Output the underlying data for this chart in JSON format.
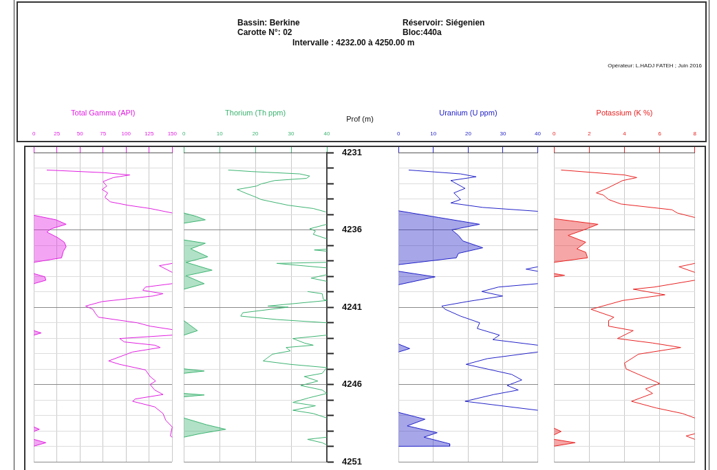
{
  "chart_data": [
    {
      "type": "line",
      "orientation": "horizontal",
      "xlabel": "Total Gamma (API)",
      "xlim": [
        0,
        150
      ],
      "xticks": [
        0,
        25,
        50,
        75,
        100,
        125,
        150
      ],
      "ylim": [
        4251,
        4231
      ],
      "yticks": [
        4231,
        {
          "value": 4232,
          "label": null
        },
        {
          "value": 4233,
          "label": null
        },
        {
          "value": 4234,
          "label": null
        },
        {
          "value": 4235,
          "label": null
        },
        4236,
        {
          "value": 4237,
          "label": null
        },
        {
          "value": 4238,
          "label": null
        },
        {
          "value": 4239,
          "label": null
        },
        {
          "value": 4240,
          "label": null
        },
        4241,
        {
          "value": 4242,
          "label": null
        },
        {
          "value": 4243,
          "label": null
        },
        {
          "value": 4244,
          "label": null
        },
        {
          "value": 4245,
          "label": null
        },
        4246,
        {
          "value": 4247,
          "label": null
        },
        {
          "value": 4248,
          "label": null
        },
        {
          "value": 4249,
          "label": null
        },
        {
          "value": 4250,
          "label": null
        },
        4251
      ],
      "grid": true,
      "marker": "none",
      "tick_labels": "x",
      "annotations": [
        "Bassin: Berkine",
        "Carotte N°: 02",
        "Réservoir: Siégenien",
        "Bloc:440a",
        "Intervalle : 4232.00 à 4250.00 m",
        "Opérateur: L.HADJ FATEH ; Juin 2016"
      ],
      "series": [
        {
          "type": "line",
          "color": "#e01ee0",
          "x": [
            4232.13,
            4232.3,
            4232.45,
            4232.62,
            4232.88,
            4233.17,
            4233.39,
            4233.61,
            4233.9,
            4234.19,
            4234.41,
            4234.62,
            4234.91,
            4235.0,
            4238.17,
            4238.32,
            4238.75,
            4238.8,
            4239.48,
            4239.7,
            4239.91,
            4240.13,
            4240.28,
            4240.64,
            4240.93,
            4241.14,
            4241.43,
            4241.65,
            4242.01,
            4242.23,
            4242.45,
            4242.5,
            4242.81,
            4243.03,
            4243.25,
            4243.46,
            4243.61,
            4243.9,
            4244.48,
            4244.7,
            4245.06,
            4245.49,
            4245.78,
            4246.0,
            4246.36,
            4246.65,
            4246.94,
            4247.09,
            4247.45,
            4247.88,
            4248.32,
            4248.75,
            4249.33,
            4249.41
          ],
          "values": [
            14,
            76,
            104,
            86,
            75,
            79,
            74,
            80,
            77,
            83,
            102,
            126,
            150,
            null,
            150,
            136,
            150,
            null,
            150,
            121,
            118,
            140,
            129,
            74,
            56,
            64,
            67,
            70,
            112,
            126,
            150,
            null,
            150,
            93,
            98,
            131,
            137,
            107,
            81,
            93,
            121,
            126,
            132,
            126,
            131,
            140,
            110,
            107,
            131,
            140,
            143,
            150,
            148,
            150
          ]
        },
        {
          "type": "area",
          "color": "#e01ee0",
          "x": [
            4235.06,
            4235.35,
            4235.64,
            4235.93,
            4236.14,
            4236.51,
            4236.8,
            4237.09,
            4237.38,
            4237.81,
            4238.1,
            4238.3,
            4238.83,
            4239.04,
            4239.26,
            4239.48,
            4240.0,
            4242.52,
            4242.67,
            4242.81,
            4243.0,
            4248.75,
            4248.9,
            4249.04,
            4249.3,
            4249.55,
            4249.77,
            4249.99
          ],
          "values": [
            0,
            24,
            35,
            19,
            14,
            26,
            33,
            35,
            32,
            30,
            0,
            null,
            0,
            12,
            13,
            0,
            null,
            0,
            8,
            0,
            null,
            0,
            6,
            0,
            null,
            0,
            13,
            0
          ]
        }
      ]
    },
    {
      "type": "line",
      "orientation": "horizontal",
      "xlabel": "Thorium (Th ppm)",
      "ylabel": "Prof (m)",
      "xlim": [
        0,
        40
      ],
      "xticks": [
        0,
        10,
        20,
        30,
        40
      ],
      "ylim": [
        4251,
        4231
      ],
      "yticks": [
        4231,
        {
          "value": 4232,
          "label": null
        },
        {
          "value": 4233,
          "label": null
        },
        {
          "value": 4234,
          "label": null
        },
        {
          "value": 4235,
          "label": null
        },
        4236,
        {
          "value": 4237,
          "label": null
        },
        {
          "value": 4238,
          "label": null
        },
        {
          "value": 4239,
          "label": null
        },
        {
          "value": 4240,
          "label": null
        },
        4241,
        {
          "value": 4242,
          "label": null
        },
        {
          "value": 4243,
          "label": null
        },
        {
          "value": 4244,
          "label": null
        },
        {
          "value": 4245,
          "label": null
        },
        4246,
        {
          "value": 4247,
          "label": null
        },
        {
          "value": 4248,
          "label": null
        },
        {
          "value": 4249,
          "label": null
        },
        {
          "value": 4250,
          "label": null
        },
        4251
      ],
      "grid": true,
      "marker": "none",
      "series": [
        {
          "type": "line",
          "color": "#3cb371",
          "x": [
            4232.13,
            4232.23,
            4232.38,
            4232.52,
            4232.67,
            4232.81,
            4233.03,
            4233.17,
            4233.39,
            4233.61,
            4233.9,
            4234.04,
            4234.41,
            4234.62,
            4234.84,
            4234.9,
            4235.64,
            4235.93,
            4236.07,
            4236.29,
            4236.58,
            4236.6,
            4237.25,
            4237.3,
            4237.38,
            4237.4,
            4238.1,
            4238.17,
            4238.25,
            4238.46,
            4238.5,
            4238.9,
            4239.12,
            4239.33,
            4239.4,
            4239.99,
            4240.13,
            4240.49,
            4240.57,
            4240.93,
            4241.0,
            4241.36,
            4241.58,
            4241.8,
            4242.01,
            4242.1,
            4242.81,
            4243.03,
            4243.32,
            4243.46,
            4243.61,
            4243.83,
            4244.04,
            4244.48,
            4244.7,
            4244.91,
            4245.28,
            4245.49,
            4245.78,
            4246.07,
            4246.36,
            4246.58,
            4246.87,
            4247.16,
            4247.38,
            4247.67,
            4247.88,
            4248.17,
            4248.3,
            4249.41,
            4249.55,
            4249.77,
            4249.91
          ],
          "values": [
            12.4,
            19,
            32.4,
            35.2,
            34.3,
            25.4,
            21.6,
            20.3,
            14.9,
            17.1,
            20.3,
            21.6,
            29.2,
            36.2,
            39.7,
            null,
            40,
            35.2,
            36.8,
            36.2,
            40,
            null,
            40,
            36.5,
            40,
            null,
            40,
            26,
            29.8,
            40,
            null,
            40,
            35.6,
            40,
            null,
            34.6,
            38.7,
            39,
            40,
            23.5,
            29.2,
            16.5,
            15.9,
            26,
            40,
            null,
            40,
            30.5,
            33.7,
            36.2,
            28.6,
            29.8,
            24.8,
            22.2,
            29.8,
            40,
            38.7,
            33.7,
            37.5,
            32.7,
            38.7,
            40,
            34.9,
            30.5,
            36.8,
            30.5,
            36.2,
            40,
            null,
            40,
            34.6,
            38.7,
            40
          ]
        },
        {
          "type": "area",
          "color": "#3cb371",
          "x": [
            4234.91,
            4235.13,
            4235.35,
            4235.57,
            4235.6,
            4236.65,
            4236.87,
            4237.23,
            4237.74,
            4238.1,
            4238.61,
            4238.97,
            4239.48,
            4239.84,
            4240.0,
            4241.87,
            4242.52,
            4242.81,
            4243.0,
            4244.99,
            4245.13,
            4245.28,
            4245.5,
            4246.58,
            4246.68,
            4246.8,
            4247.0,
            4248.17,
            4248.61,
            4248.9,
            4249.19,
            4249.41
          ],
          "values": [
            0,
            3.5,
            6,
            0,
            null,
            0,
            6,
            1.9,
            6.7,
            0.6,
            7.9,
            0.6,
            5.7,
            0,
            null,
            0,
            3.8,
            0,
            null,
            0,
            5.7,
            0,
            null,
            0,
            5.7,
            0,
            null,
            0,
            6.4,
            11.7,
            4.4,
            0
          ]
        }
      ]
    },
    {
      "type": "line",
      "orientation": "horizontal",
      "xlabel": "Uranium (U ppm)",
      "xlim": [
        0,
        40
      ],
      "xticks": [
        0,
        10,
        20,
        30,
        40
      ],
      "ylim": [
        4251,
        4231
      ],
      "yticks": [
        4231,
        {
          "value": 4232,
          "label": null
        },
        {
          "value": 4233,
          "label": null
        },
        {
          "value": 4234,
          "label": null
        },
        {
          "value": 4235,
          "label": null
        },
        4236,
        {
          "value": 4237,
          "label": null
        },
        {
          "value": 4238,
          "label": null
        },
        {
          "value": 4239,
          "label": null
        },
        {
          "value": 4240,
          "label": null
        },
        4241,
        {
          "value": 4242,
          "label": null
        },
        {
          "value": 4243,
          "label": null
        },
        {
          "value": 4244,
          "label": null
        },
        {
          "value": 4245,
          "label": null
        },
        4246,
        {
          "value": 4247,
          "label": null
        },
        {
          "value": 4248,
          "label": null
        },
        {
          "value": 4249,
          "label": null
        },
        {
          "value": 4250,
          "label": null
        },
        4251
      ],
      "grid": true,
      "marker": "none",
      "tick_labels": "x",
      "series": [
        {
          "type": "line",
          "color": "#2020c8",
          "x": [
            4232.13,
            4232.38,
            4232.57,
            4232.81,
            4233.32,
            4233.61,
            4234.04,
            4234.26,
            4234.55,
            4234.8,
            4234.9,
            4238.39,
            4238.54,
            4238.68,
            4238.8,
            4239.48,
            4239.7,
            4239.99,
            4240.28,
            4240.64,
            4240.93,
            4241.14,
            4241.58,
            4242.01,
            4242.38,
            4242.81,
            4243.1,
            4243.46,
            4243.6,
            4243.9,
            4244.33,
            4244.7,
            4245.35,
            4245.71,
            4246.07,
            4246.36,
            4246.65,
            4247.09,
            4247.67
          ],
          "values": [
            2.9,
            17.8,
            22.3,
            15,
            19.1,
            15.9,
            17.8,
            15,
            24.2,
            40,
            null,
            40,
            36.6,
            40,
            null,
            40,
            28.7,
            23.9,
            29.9,
            19.7,
            12.4,
            13.4,
            17.8,
            23.3,
            22.6,
            29,
            27.1,
            40,
            null,
            40,
            25.5,
            19.4,
            32.5,
            35.4,
            31.2,
            34.4,
            27.4,
            19.1,
            40
          ]
        },
        {
          "type": "area",
          "color": "#2020c8",
          "x": [
            4234.77,
            4235.2,
            4235.64,
            4236.0,
            4236.36,
            4236.72,
            4237.16,
            4237.52,
            4237.81,
            4238.25,
            4238.4,
            4238.68,
            4239.04,
            4239.55,
            4240.0,
            4243.39,
            4243.68,
            4243.9,
            4244.0,
            4247.81,
            4248.25,
            4248.68,
            4249.12,
            4249.41,
            4249.84,
            4249.99,
            4250.0
          ],
          "values": [
            0,
            11.5,
            23.3,
            15.3,
            17.2,
            18.5,
            24.2,
            17.2,
            16.6,
            0,
            null,
            0,
            10.5,
            0,
            null,
            0,
            3.2,
            0,
            null,
            0,
            7.6,
            2.5,
            11.1,
            7.3,
            14.7,
            14.7,
            0
          ]
        }
      ]
    },
    {
      "type": "line",
      "orientation": "horizontal",
      "xlabel": "Potassium (K %)",
      "xlim": [
        0,
        8
      ],
      "xticks": [
        0,
        2,
        4,
        6,
        8
      ],
      "ylim": [
        4251,
        4231
      ],
      "yticks": [
        4231,
        {
          "value": 4232,
          "label": null
        },
        {
          "value": 4233,
          "label": null
        },
        {
          "value": 4234,
          "label": null
        },
        {
          "value": 4235,
          "label": null
        },
        4236,
        {
          "value": 4237,
          "label": null
        },
        {
          "value": 4238,
          "label": null
        },
        {
          "value": 4239,
          "label": null
        },
        {
          "value": 4240,
          "label": null
        },
        4241,
        {
          "value": 4242,
          "label": null
        },
        {
          "value": 4243,
          "label": null
        },
        {
          "value": 4244,
          "label": null
        },
        {
          "value": 4245,
          "label": null
        },
        4246,
        {
          "value": 4247,
          "label": null
        },
        {
          "value": 4248,
          "label": null
        },
        {
          "value": 4249,
          "label": null
        },
        {
          "value": 4250,
          "label": null
        },
        4251
      ],
      "grid": true,
      "marker": "none",
      "tick_labels": "x",
      "series": [
        {
          "type": "line",
          "color": "#e82020",
          "x": [
            4232.13,
            4232.45,
            4232.62,
            4232.81,
            4233.32,
            4233.61,
            4233.75,
            4234.04,
            4234.33,
            4234.7,
            4234.91,
            4235.2,
            4235.3,
            4238.17,
            4238.39,
            4238.75,
            4238.9,
            4239.26,
            4239.7,
            4239.84,
            4240.2,
            4240.57,
            4241.14,
            4241.65,
            4241.87,
            4242.23,
            4242.52,
            4243.03,
            4243.32,
            4243.61,
            4244.04,
            4244.62,
            4245.0,
            4245.35,
            4245.93,
            4246.29,
            4246.58,
            4247.09,
            4247.52,
            4247.88,
            4248.17,
            4248.4,
            4249.19,
            4249.33,
            4249.55
          ],
          "values": [
            0.4,
            4.0,
            4.7,
            3.9,
            3.0,
            2.4,
            2.8,
            3.1,
            3.8,
            6.7,
            7.0,
            8,
            null,
            8,
            7.1,
            8,
            null,
            8,
            5.7,
            4.5,
            6.3,
            3.9,
            2.1,
            3.4,
            3.1,
            3.1,
            4.5,
            3.6,
            5.6,
            7.2,
            4.8,
            4.0,
            4.1,
            4.8,
            6.0,
            5.2,
            5.6,
            4.4,
            5.8,
            7.3,
            8,
            null,
            8,
            7.5,
            8
          ]
        },
        {
          "type": "area",
          "color": "#e82020",
          "x": [
            4235.28,
            4235.64,
            4236.0,
            4236.36,
            4236.8,
            4237.23,
            4237.45,
            4237.81,
            4238.1,
            4238.3,
            4238.83,
            4238.94,
            4239.04,
            4239.5,
            4248.83,
            4249.04,
            4249.26,
            4249.4,
            4249.55,
            4249.77,
            4249.99
          ],
          "values": [
            0,
            2.5,
            1.7,
            0.8,
            1.8,
            1.3,
            1.8,
            1.9,
            0,
            null,
            0,
            0.6,
            0,
            null,
            0,
            0.4,
            0,
            null,
            0,
            1.2,
            0
          ]
        }
      ]
    }
  ]
}
